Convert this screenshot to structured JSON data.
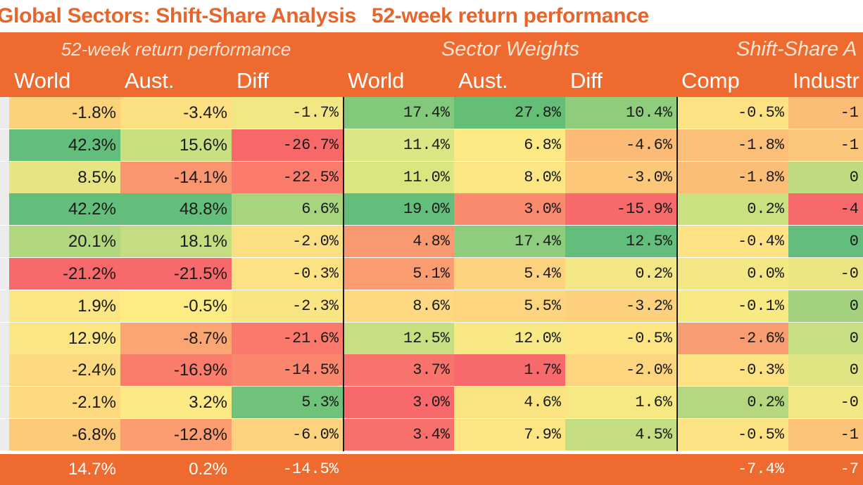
{
  "title": {
    "part1": "Global Sectors: Shift-Share Analysis",
    "part2": "52-week return performance"
  },
  "groups": [
    "52-week return performance",
    "Sector Weights",
    "Shift-Share A"
  ],
  "columns": [
    "World",
    "Aust.",
    "Diff",
    "World",
    "Aust.",
    "Diff",
    "Comp",
    "Industr"
  ],
  "chart_data": {
    "type": "table",
    "title": "Global Sectors: Shift-Share Analysis 52-week return performance",
    "column_groups": [
      {
        "name": "52-week return performance",
        "columns": [
          "World",
          "Aust.",
          "Diff"
        ]
      },
      {
        "name": "Sector Weights",
        "columns": [
          "World",
          "Aust.",
          "Diff"
        ]
      },
      {
        "name": "Shift-Share A",
        "columns": [
          "Comp",
          "Industr"
        ]
      }
    ],
    "rows": [
      [
        "-1.8%",
        "-3.4%",
        "-1.7%",
        "17.4%",
        "27.8%",
        "10.4%",
        "-0.5%",
        "-1"
      ],
      [
        "42.3%",
        "15.6%",
        "-26.7%",
        "11.4%",
        "6.8%",
        "-4.6%",
        "-1.8%",
        "-1"
      ],
      [
        "8.5%",
        "-14.1%",
        "-22.5%",
        "11.0%",
        "8.0%",
        "-3.0%",
        "-1.8%",
        "0"
      ],
      [
        "42.2%",
        "48.8%",
        "6.6%",
        "19.0%",
        "3.0%",
        "-15.9%",
        "0.2%",
        "-4"
      ],
      [
        "20.1%",
        "18.1%",
        "-2.0%",
        "4.8%",
        "17.4%",
        "12.5%",
        "-0.4%",
        "0"
      ],
      [
        "-21.2%",
        "-21.5%",
        "-0.3%",
        "5.1%",
        "5.4%",
        "0.2%",
        "0.0%",
        "-0"
      ],
      [
        "1.9%",
        "-0.5%",
        "-2.3%",
        "8.6%",
        "5.5%",
        "-3.2%",
        "-0.1%",
        "0"
      ],
      [
        "12.9%",
        "-8.7%",
        "-21.6%",
        "12.5%",
        "12.0%",
        "-0.5%",
        "-2.6%",
        "0"
      ],
      [
        "-2.4%",
        "-16.9%",
        "-14.5%",
        "3.7%",
        "1.7%",
        "-2.0%",
        "-0.3%",
        "0"
      ],
      [
        "-2.1%",
        "3.2%",
        "5.3%",
        "3.0%",
        "4.6%",
        "1.6%",
        "0.2%",
        "-0"
      ],
      [
        "-6.8%",
        "-12.8%",
        "-6.0%",
        "3.4%",
        "7.9%",
        "4.5%",
        "-0.5%",
        "-1"
      ]
    ],
    "colors": [
      [
        "#fbd27a",
        "#fde082",
        "#f2e883",
        "#82c97b",
        "#64be76",
        "#8fcd7d",
        "#fde284",
        "#fbbd75"
      ],
      [
        "#63be7b",
        "#c8e07f",
        "#f96868",
        "#dde685",
        "#fdea84",
        "#fbba75",
        "#fbbf79",
        "#fbc77b"
      ],
      [
        "#e6e483",
        "#f9956f",
        "#fa7a6c",
        "#dce681",
        "#fde683",
        "#fcc779",
        "#fbbe77",
        "#bedb7f"
      ],
      [
        "#64be7b",
        "#63be7b",
        "#a8d47e",
        "#63be7b",
        "#fa8a6f",
        "#f8696b",
        "#c9e180",
        "#f8696b"
      ],
      [
        "#b2d77f",
        "#c3dd80",
        "#fbe083",
        "#fa986f",
        "#8ecd7d",
        "#63be7b",
        "#fde383",
        "#63be7b"
      ],
      [
        "#f8696b",
        "#f8696b",
        "#fde283",
        "#fb9c70",
        "#fdd27f",
        "#f2e784",
        "#f3e884",
        "#e9e583"
      ],
      [
        "#fbe683",
        "#fdeb84",
        "#fbe583",
        "#fed981",
        "#fed57f",
        "#fcd07d",
        "#f8e983",
        "#a4d17d"
      ],
      [
        "#fbe683",
        "#fba672",
        "#fa796c",
        "#c7df81",
        "#f8e984",
        "#fde584",
        "#f89d71",
        "#c7df81"
      ],
      [
        "#fdda7f",
        "#fa7d6c",
        "#fa866e",
        "#f8736b",
        "#f8696b",
        "#fdd57f",
        "#fde283",
        "#e1e483"
      ],
      [
        "#fdda7f",
        "#fdea84",
        "#70c27b",
        "#f8696b",
        "#fde482",
        "#f6e984",
        "#b5d77f",
        "#f1e784"
      ],
      [
        "#fcc97b",
        "#fc9d71",
        "#fdd27f",
        "#f8706b",
        "#fbe683",
        "#c3dd80",
        "#fde283",
        "#fbc479"
      ]
    ],
    "totals": [
      "14.7%",
      "0.2%",
      "-14.5%",
      "",
      "",
      "",
      "-7.4%",
      "-7"
    ]
  }
}
